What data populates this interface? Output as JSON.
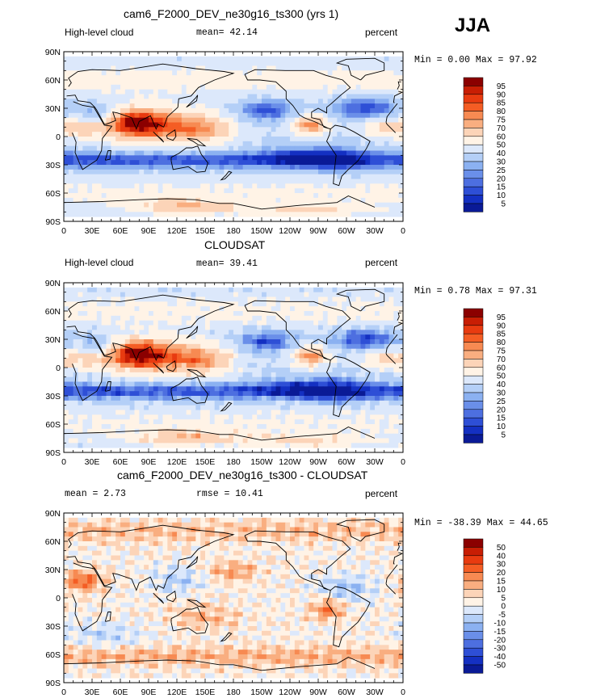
{
  "season": "JJA",
  "chart_data": [
    {
      "type": "heatmap",
      "title": "cam6_F2000_DEV_ne30g16_ts300 (yrs 1)",
      "left_label": "High-level cloud",
      "center_label": "mean=  42.14",
      "right_label": "percent",
      "stats_label": "Min =    0.00 Max =  97.92",
      "mean": 42.14,
      "min": 0.0,
      "max": 97.92,
      "x_ticks": [
        "0",
        "30E",
        "60E",
        "90E",
        "120E",
        "150E",
        "180",
        "150W",
        "120W",
        "90W",
        "60W",
        "30W",
        "0"
      ],
      "y_ticks": [
        "90N",
        "60N",
        "30N",
        "0",
        "30S",
        "60S",
        "90S"
      ],
      "colorbar_levels": [
        "95",
        "90",
        "85",
        "80",
        "75",
        "70",
        "60",
        "50",
        "40",
        "30",
        "25",
        "20",
        "15",
        "10",
        "5"
      ],
      "colorbar_colors": [
        "#8b0000",
        "#c81e04",
        "#e83b10",
        "#f45d24",
        "#f78a52",
        "#f9ae80",
        "#fcd4b8",
        "#fff3e6",
        "#dce8fb",
        "#b4cff7",
        "#8bb1f1",
        "#6a8fe9",
        "#4d6fe0",
        "#2e4fd6",
        "#1430c2",
        "#0a1a96"
      ]
    },
    {
      "type": "heatmap",
      "title": "CLOUDSAT",
      "left_label": "High-level cloud",
      "center_label": "mean=  39.41",
      "right_label": "percent",
      "stats_label": "Min =    0.78 Max =  97.31",
      "mean": 39.41,
      "min": 0.78,
      "max": 97.31,
      "x_ticks": [
        "0",
        "30E",
        "60E",
        "90E",
        "120E",
        "150E",
        "180",
        "150W",
        "120W",
        "90W",
        "60W",
        "30W",
        "0"
      ],
      "y_ticks": [
        "90N",
        "60N",
        "30N",
        "0",
        "30S",
        "60S",
        "90S"
      ],
      "colorbar_levels": [
        "95",
        "90",
        "85",
        "80",
        "75",
        "70",
        "60",
        "50",
        "40",
        "30",
        "25",
        "20",
        "15",
        "10",
        "5"
      ],
      "colorbar_colors": [
        "#8b0000",
        "#c81e04",
        "#e83b10",
        "#f45d24",
        "#f78a52",
        "#f9ae80",
        "#fcd4b8",
        "#fff3e6",
        "#dce8fb",
        "#b4cff7",
        "#8bb1f1",
        "#6a8fe9",
        "#4d6fe0",
        "#2e4fd6",
        "#1430c2",
        "#0a1a96"
      ]
    },
    {
      "type": "heatmap",
      "title": "cam6_F2000_DEV_ne30g16_ts300 - CLOUDSAT",
      "left_label": "mean =    2.73",
      "center_label": "rmse =   10.41",
      "right_label": "percent",
      "stats_label": "Min = -38.39 Max =  44.65",
      "mean": 2.73,
      "rmse": 10.41,
      "min": -38.39,
      "max": 44.65,
      "x_ticks": [
        "0",
        "30E",
        "60E",
        "90E",
        "120E",
        "150E",
        "180",
        "150W",
        "120W",
        "90W",
        "60W",
        "30W",
        "0"
      ],
      "y_ticks": [
        "90N",
        "60N",
        "30N",
        "0",
        "30S",
        "60S",
        "90S"
      ],
      "colorbar_levels": [
        "50",
        "40",
        "30",
        "20",
        "15",
        "10",
        "5",
        "0",
        "-5",
        "-10",
        "-15",
        "-20",
        "-30",
        "-40",
        "-50"
      ],
      "colorbar_colors": [
        "#8b0000",
        "#c81e04",
        "#e83b10",
        "#f45d24",
        "#f78a52",
        "#f9ae80",
        "#fcd4b8",
        "#fff3e6",
        "#dce8fb",
        "#b4cff7",
        "#8bb1f1",
        "#6a8fe9",
        "#4d6fe0",
        "#2e4fd6",
        "#1430c2",
        "#0a1a96"
      ]
    }
  ]
}
